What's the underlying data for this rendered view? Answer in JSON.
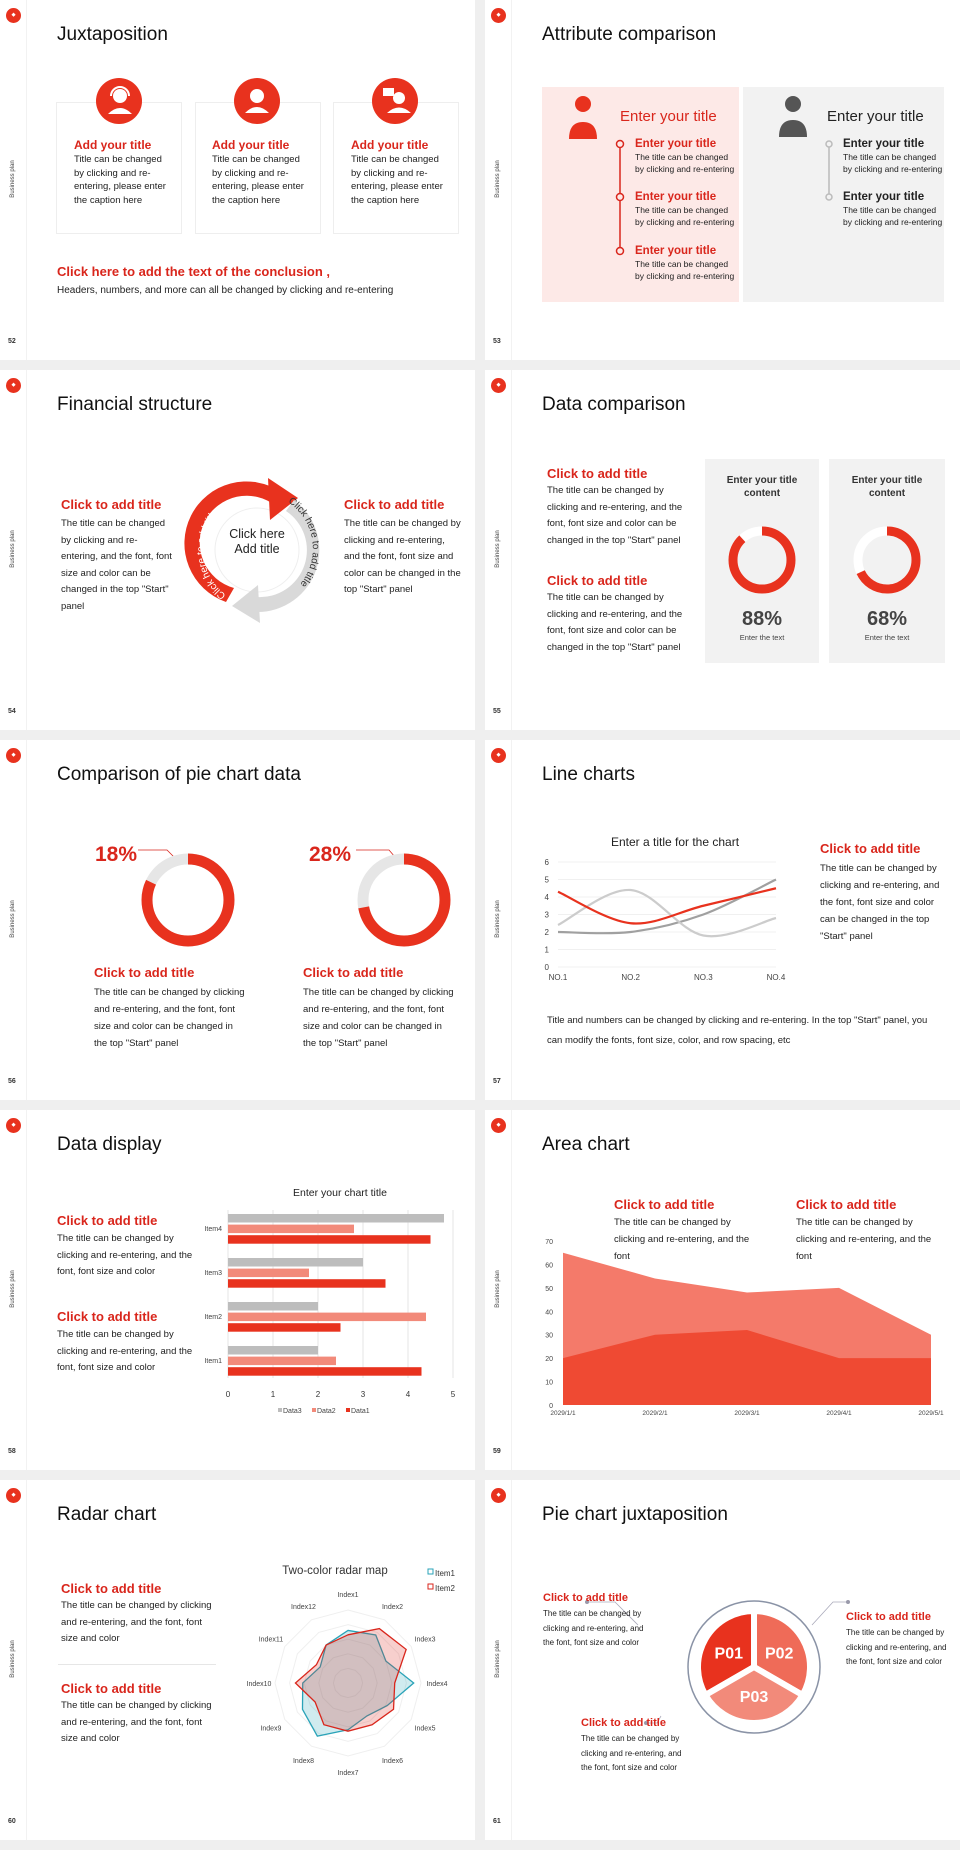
{
  "sidebar_label": "Business plan",
  "colors": {
    "accent": "#e8321e",
    "title_red": "#d9261c",
    "light_red": "#f28a7a",
    "mid_red": "#ef6b58",
    "gray": "#bdbdbd",
    "panel_gray": "#f2f2f2",
    "panel_pink": "#fde9e7",
    "teal": "#2aa3b8"
  },
  "s52": {
    "page": "52",
    "title": "Juxtaposition",
    "cards": [
      {
        "icon": "headset-person-icon",
        "title": "Add your title",
        "body": "Title can be changed by clicking and re-entering, please enter the caption here"
      },
      {
        "icon": "woman-person-icon",
        "title": "Add your title",
        "body": "Title can be changed by clicking and re-entering, please enter the caption here"
      },
      {
        "icon": "speech-person-icon",
        "title": "Add your title",
        "body": "Title can be changed by clicking and re-entering, please enter the caption here"
      }
    ],
    "conclusion_title": "Click here to add the text of the conclusion ,",
    "conclusion_body": "Headers, numbers, and more can all be changed by clicking and re-entering"
  },
  "s53": {
    "page": "53",
    "title": "Attribute comparison",
    "left": {
      "heading": "Enter your title",
      "items": [
        {
          "title": "Enter your title",
          "body": "The title can be changed by clicking and re-entering"
        },
        {
          "title": "Enter your title",
          "body": "The title can be changed by clicking and re-entering"
        },
        {
          "title": "Enter your title",
          "body": "The title can be changed by clicking and re-entering"
        }
      ]
    },
    "right": {
      "heading": "Enter your title",
      "items": [
        {
          "title": "Enter your title",
          "body": "The title can be changed by clicking and re-entering"
        },
        {
          "title": "Enter your title",
          "body": "The title can be changed by clicking and re-entering"
        }
      ]
    }
  },
  "s54": {
    "page": "54",
    "title": "Financial structure",
    "left": {
      "title": "Click to add title",
      "body": "The title can be changed by clicking and re-entering, and the font, font size and color can be changed in the top \"Start\" panel"
    },
    "right": {
      "title": "Click to add title",
      "body": "The title can be changed by clicking and re-entering, and the font, font size and color can be changed in the top \"Start\" panel"
    },
    "center_line1": "Click here",
    "center_line2": "Add title",
    "arc_red": "Click here to add title",
    "arc_gray": "Click here to add title"
  },
  "s55": {
    "page": "55",
    "title": "Data comparison",
    "blocks": [
      {
        "title": "Click to add title",
        "body": "The title can be changed by clicking and re-entering, and the font, font size and color can be changed in the top \"Start\" panel"
      },
      {
        "title": "Click to add title",
        "body": "The title can be changed by clicking and re-entering, and the font, font size and color can be changed in the top \"Start\" panel"
      }
    ],
    "panels": [
      {
        "title1": "Enter your title",
        "title2": "content",
        "percent": 88,
        "label": "88%",
        "caption": "Enter the text"
      },
      {
        "title1": "Enter your title",
        "title2": "content",
        "percent": 68,
        "label": "68%",
        "caption": "Enter the text"
      }
    ]
  },
  "s56": {
    "page": "56",
    "title": "Comparison of pie chart data",
    "items": [
      {
        "percent": 18,
        "label": "18%",
        "title": "Click to add title",
        "body": "The title can be changed by clicking and re-entering, and the font, font size and color can be changed in the top \"Start\" panel"
      },
      {
        "percent": 28,
        "label": "28%",
        "title": "Click to add title",
        "body": "The title can be changed by clicking and re-entering, and the font, font size and color can be changed in the top \"Start\" panel"
      }
    ]
  },
  "s57": {
    "page": "57",
    "title": "Line charts",
    "side_title": "Click to add title",
    "side_body": "The title can be changed by clicking and re-entering, and the font, font size and color can be changed in the top \"Start\" panel",
    "bottom": "Title and numbers can be changed by clicking and re-entering. In the top \"Start\" panel, you can modify the fonts, font size, color, and row spacing, etc"
  },
  "s58": {
    "page": "58",
    "title": "Data display",
    "blocks": [
      {
        "title": "Click to add title",
        "body": "The title can be changed by clicking and re-entering, and the font, font size and color"
      },
      {
        "title": "Click to add title",
        "body": "The title can be changed by clicking and re-entering, and the font, font size and color"
      }
    ]
  },
  "s59": {
    "page": "59",
    "title": "Area chart",
    "blocks": [
      {
        "title": "Click to add title",
        "body": "The title can be changed by clicking and re-entering, and the font"
      },
      {
        "title": "Click to add title",
        "body": "The title can be changed by clicking and re-entering, and the font"
      }
    ]
  },
  "s60": {
    "page": "60",
    "title": "Radar chart",
    "blocks": [
      {
        "title": "Click to add title",
        "body": "The title can be changed by clicking and re-entering, and the font, font size and color"
      },
      {
        "title": "Click to add title",
        "body": "The title can be changed by clicking and re-entering, and the font, font size and color"
      }
    ]
  },
  "s61": {
    "page": "61",
    "title": "Pie chart juxtaposition",
    "segments": [
      "P01",
      "P02",
      "P03"
    ],
    "blocks": [
      {
        "title": "Click to add title",
        "body": "The title can be changed by clicking and re-entering, and the font, font size and color"
      },
      {
        "title": "Click to add title",
        "body": "The title can be changed by clicking and re-entering, and the font, font size and color"
      },
      {
        "title": "Click to add title",
        "body": "The title can be changed by clicking and re-entering, and the font, font size and color"
      }
    ]
  },
  "chart_data": [
    {
      "type": "line",
      "title": "Enter a title for the chart",
      "categories": [
        "NO.1",
        "NO.2",
        "NO.3",
        "NO.4"
      ],
      "ylim": [
        0,
        6
      ],
      "yticks": [
        0,
        1,
        2,
        3,
        4,
        5,
        6
      ],
      "grid": true,
      "smooth": true,
      "series": [
        {
          "color": "#e8321e",
          "values": [
            4.3,
            2.5,
            3.5,
            4.5
          ]
        },
        {
          "color": "#cccccc",
          "values": [
            2.4,
            4.4,
            1.8,
            2.8
          ]
        },
        {
          "color": "#a0a0a0",
          "values": [
            2,
            2,
            3,
            5
          ]
        }
      ]
    },
    {
      "type": "bar",
      "orientation": "horizontal",
      "title": "Enter your chart title",
      "categories": [
        "Item1",
        "Item2",
        "Item3",
        "Item4"
      ],
      "xlim": [
        0,
        5
      ],
      "xticks": [
        0,
        1,
        2,
        3,
        4,
        5
      ],
      "grid": true,
      "legend": "bottom",
      "series": [
        {
          "name": "Data3",
          "color": "#bdbdbd",
          "values": [
            2,
            2,
            3,
            4.8
          ]
        },
        {
          "name": "Data2",
          "color": "#f28a7a",
          "values": [
            2.4,
            4.4,
            1.8,
            2.8
          ]
        },
        {
          "name": "Data1",
          "color": "#e8321e",
          "values": [
            4.3,
            2.5,
            3.5,
            4.5
          ]
        }
      ]
    },
    {
      "type": "area",
      "categories": [
        "2029/1/1",
        "2029/2/1",
        "2029/3/1",
        "2029/4/1",
        "2029/5/1"
      ],
      "ylim": [
        0,
        70
      ],
      "yticks": [
        0,
        10,
        20,
        30,
        40,
        50,
        60,
        70
      ],
      "series": [
        {
          "color": "#f47a6a",
          "values": [
            65,
            54,
            48,
            50,
            30
          ]
        },
        {
          "color": "#ef4a33",
          "values": [
            20,
            30,
            32,
            20,
            20
          ]
        }
      ]
    },
    {
      "type": "radar",
      "title": "Two-color radar map",
      "legend": "top-right",
      "axes": [
        "Index1",
        "Index2",
        "Index3",
        "Index4",
        "Index5",
        "Index6",
        "Index7",
        "Index8",
        "Index9",
        "Index10",
        "Index11",
        "Index12"
      ],
      "rmax": 5,
      "series": [
        {
          "name": "Item1",
          "color": "#2aa3b8",
          "values": [
            3.6,
            3.8,
            3.0,
            4.5,
            3.1,
            2.6,
            3.2,
            4.2,
            3.6,
            3.1,
            2.2,
            3.0
          ]
        },
        {
          "name": "Item2",
          "color": "#d9261c",
          "values": [
            3.3,
            4.3,
            4.6,
            3.2,
            3.6,
            3.3,
            3.3,
            3.3,
            2.6,
            3.6,
            2.5,
            3.0
          ]
        }
      ]
    }
  ]
}
